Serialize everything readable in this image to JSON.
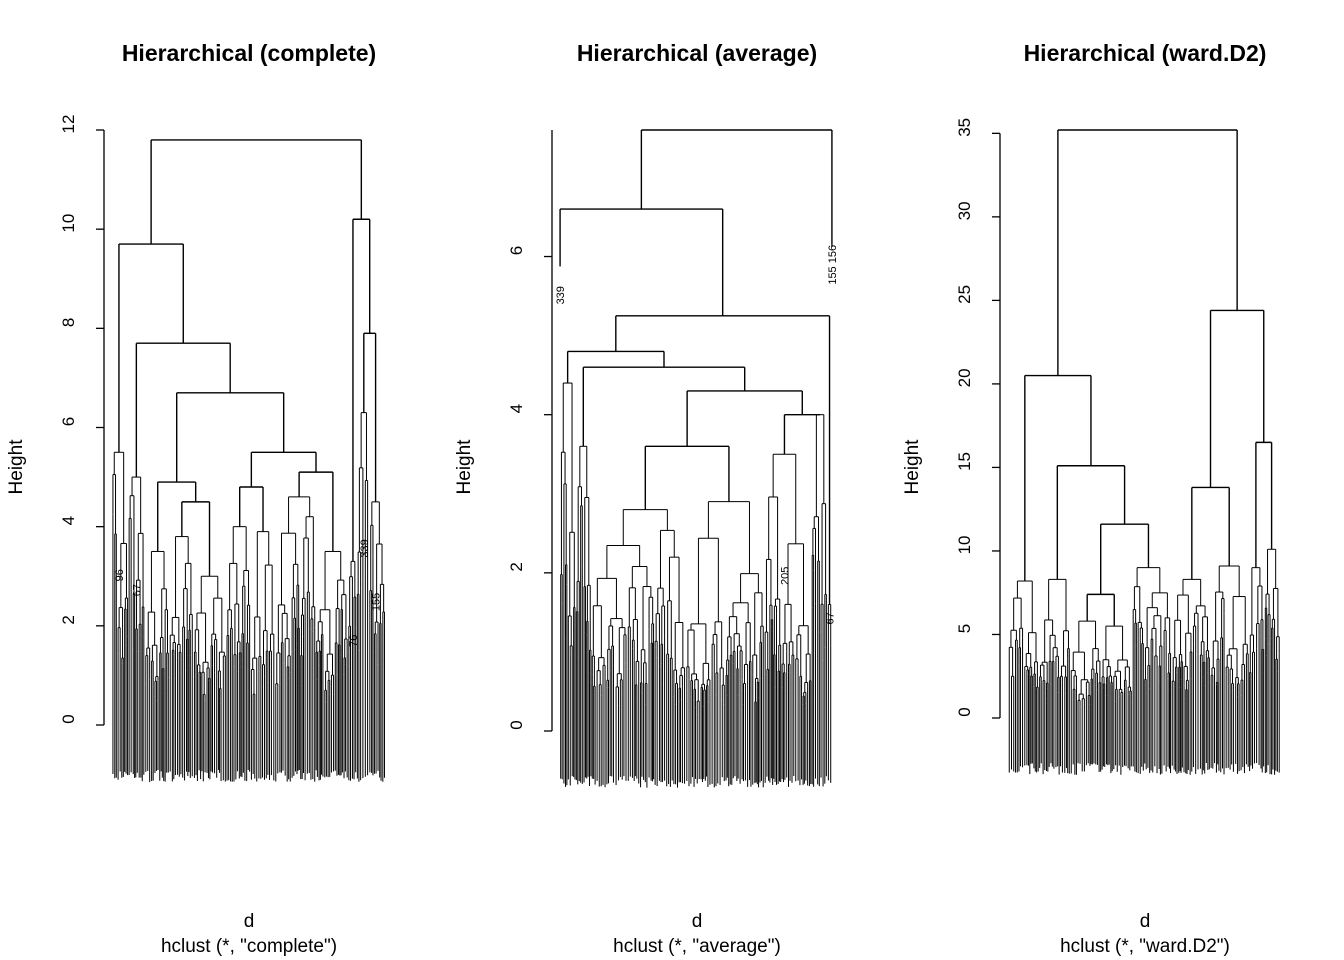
{
  "chart_data": [
    {
      "type": "dendrogram",
      "title": "Hierarchical (complete)",
      "ylabel": "Height",
      "xlabel": "d",
      "sub": "hclust (*, \"complete\")",
      "ylim": [
        0,
        12
      ],
      "yticks": [
        0,
        2,
        4,
        6,
        8,
        10,
        12
      ],
      "tree": {
        "h": 11.8,
        "c": [
          {
            "h": 9.7,
            "c": [
              {
                "leaf": true,
                "h": 5.5,
                "w": 2,
                "label": "96"
              },
              {
                "h": 7.7,
                "c": [
                  {
                    "leaf": true,
                    "h": 5.0,
                    "w": 2,
                    "label": "67"
                  },
                  {
                    "h": 6.7,
                    "c": [
                      {
                        "h": 4.9,
                        "c": [
                          {
                            "leaf": true,
                            "h": 3.5,
                            "w": 3
                          },
                          {
                            "h": 4.5,
                            "c": [
                              {
                                "leaf": true,
                                "h": 3.8,
                                "w": 3
                              },
                              {
                                "leaf": true,
                                "h": 3.0,
                                "w": 4
                              }
                            ]
                          }
                        ]
                      },
                      {
                        "h": 5.5,
                        "c": [
                          {
                            "h": 4.8,
                            "c": [
                              {
                                "leaf": true,
                                "h": 4.0,
                                "w": 3
                              },
                              {
                                "leaf": true,
                                "h": 3.9,
                                "w": 3
                              }
                            ]
                          },
                          {
                            "h": 5.1,
                            "c": [
                              {
                                "leaf": true,
                                "h": 4.6,
                                "w": 5
                              },
                              {
                                "leaf": true,
                                "h": 3.5,
                                "w": 4
                              }
                            ]
                          }
                        ]
                      }
                    ]
                  }
                ]
              }
            ]
          },
          {
            "h": 10.2,
            "c": [
              {
                "leaf": true,
                "h": 3.3,
                "w": 1,
                "label": "76"
              },
              {
                "h": 7.9,
                "c": [
                  {
                    "leaf": true,
                    "h": 6.3,
                    "w": 1.5,
                    "label": "339"
                  },
                  {
                    "leaf": true,
                    "h": 4.5,
                    "w": 2,
                    "label": "155"
                  }
                ]
              }
            ]
          }
        ]
      }
    },
    {
      "type": "dendrogram",
      "title": "Hierarchical (average)",
      "ylabel": "Height",
      "xlabel": "d",
      "sub": "hclust (*, \"average\")",
      "ylim": [
        0,
        7.6
      ],
      "yticks": [
        0,
        2,
        4,
        6
      ],
      "tree": {
        "h": 7.6,
        "c": [
          {
            "h": 6.6,
            "c": [
              {
                "leaf": true,
                "h": 5.9,
                "w": 0.01,
                "dense": false,
                "label": "339"
              },
              {
                "h": 5.25,
                "c": [
                  {
                    "h": 4.8,
                    "c": [
                      {
                        "leaf": true,
                        "h": 4.4,
                        "w": 1
                      },
                      {
                        "h": 4.6,
                        "c": [
                          {
                            "leaf": true,
                            "h": 3.6,
                            "w": 1
                          },
                          {
                            "h": 4.3,
                            "c": [
                              {
                                "h": 3.6,
                                "c": [
                                  {
                                    "leaf": true,
                                    "h": 2.8,
                                    "w": 6
                                  },
                                  {
                                    "leaf": true,
                                    "h": 2.9,
                                    "w": 5
                                  }
                                ]
                              },
                              {
                                "h": 4.0,
                                "c": [
                                  {
                                    "leaf": true,
                                    "h": 3.5,
                                    "w": 3,
                                    "label": "205"
                                  },
                                  {
                                    "leaf": true,
                                    "h": 4.0,
                                    "w": 1
                                  }
                                ]
                              }
                            ]
                          }
                        ]
                      }
                    ]
                  },
                  {
                    "leaf": true,
                    "h": 1.6,
                    "w": 0.3,
                    "label": "67"
                  }
                ]
              }
            ]
          },
          {
            "leaf": true,
            "h": 6.15,
            "w": 0.01,
            "dense": false,
            "label": "155 156"
          }
        ]
      }
    },
    {
      "type": "dendrogram",
      "title": "Hierarchical (ward.D2)",
      "ylabel": "Height",
      "xlabel": "d",
      "sub": "hclust (*, \"ward.D2\")",
      "ylim": [
        0,
        35.2
      ],
      "yticks": [
        0,
        5,
        10,
        15,
        20,
        25,
        30,
        35
      ],
      "tree": {
        "h": 35.2,
        "c": [
          {
            "h": 20.5,
            "c": [
              {
                "leaf": true,
                "h": 8.2,
                "w": 2
              },
              {
                "h": 15.1,
                "c": [
                  {
                    "leaf": true,
                    "h": 8.3,
                    "w": 2
                  },
                  {
                    "h": 11.6,
                    "c": [
                      {
                        "h": 7.4,
                        "c": [
                          {
                            "leaf": true,
                            "h": 5.8,
                            "w": 2
                          },
                          {
                            "leaf": true,
                            "h": 5.5,
                            "w": 2
                          }
                        ]
                      },
                      {
                        "leaf": true,
                        "h": 9.0,
                        "w": 2.5
                      }
                    ]
                  }
                ]
              }
            ]
          },
          {
            "h": 24.4,
            "c": [
              {
                "h": 13.8,
                "c": [
                  {
                    "leaf": true,
                    "h": 8.3,
                    "w": 2.5
                  },
                  {
                    "leaf": true,
                    "h": 9.1,
                    "w": 2.5
                  }
                ]
              },
              {
                "h": 16.5,
                "c": [
                  {
                    "leaf": true,
                    "h": 9.0,
                    "w": 1
                  },
                  {
                    "leaf": true,
                    "h": 10.1,
                    "w": 1
                  }
                ]
              }
            ]
          }
        ]
      }
    }
  ]
}
